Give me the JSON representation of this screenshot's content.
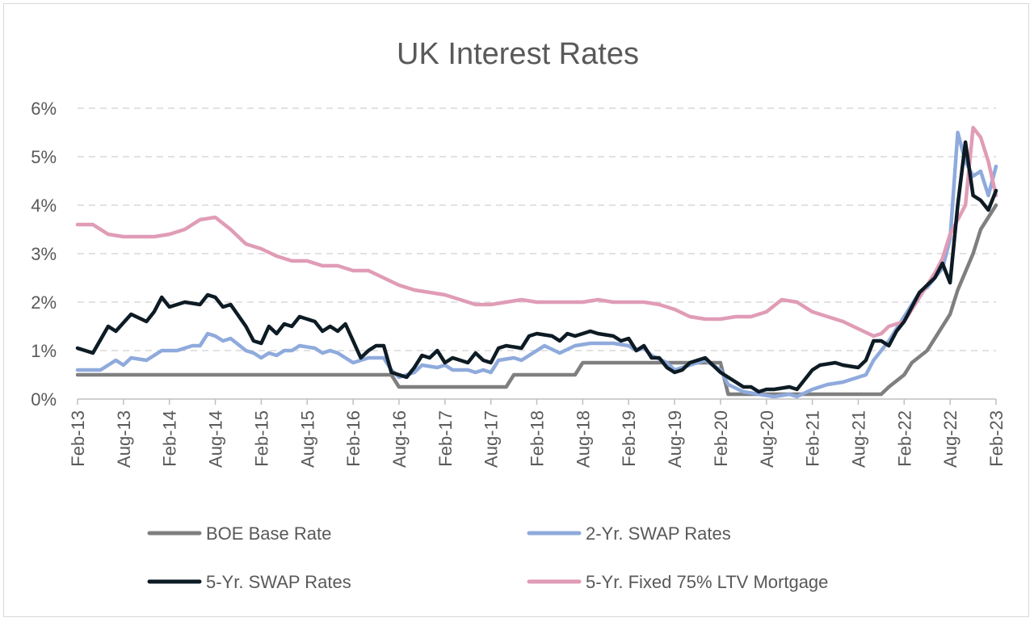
{
  "chart_data": {
    "type": "line",
    "title": "UK Interest Rates",
    "xlabel": "",
    "ylabel": "",
    "x_tick_labels": [
      "Feb-13",
      "Aug-13",
      "Feb-14",
      "Aug-14",
      "Feb-15",
      "Aug-15",
      "Feb-16",
      "Aug-16",
      "Feb-17",
      "Aug-17",
      "Feb-18",
      "Aug-18",
      "Feb-19",
      "Aug-19",
      "Feb-20",
      "Aug-20",
      "Feb-21",
      "Aug-21",
      "Feb-22",
      "Aug-22",
      "Feb-23"
    ],
    "y_tick_labels": [
      "0%",
      "1%",
      "2%",
      "3%",
      "4%",
      "5%",
      "6%"
    ],
    "ylim": [
      0,
      6
    ],
    "xlim": [
      "2013-02",
      "2023-02"
    ],
    "grid": true,
    "legend_position": "bottom",
    "series": [
      {
        "name": "BOE Base Rate",
        "color": "#7f7f7f",
        "points": [
          [
            "2013-02",
            0.5
          ],
          [
            "2016-07",
            0.5
          ],
          [
            "2016-08",
            0.25
          ],
          [
            "2017-10",
            0.25
          ],
          [
            "2017-11",
            0.5
          ],
          [
            "2018-07",
            0.5
          ],
          [
            "2018-08",
            0.75
          ],
          [
            "2020-02",
            0.75
          ],
          [
            "2020-03",
            0.1
          ],
          [
            "2021-11",
            0.1
          ],
          [
            "2021-12",
            0.25
          ],
          [
            "2022-02",
            0.5
          ],
          [
            "2022-03",
            0.75
          ],
          [
            "2022-05",
            1.0
          ],
          [
            "2022-06",
            1.25
          ],
          [
            "2022-08",
            1.75
          ],
          [
            "2022-09",
            2.25
          ],
          [
            "2022-11",
            3.0
          ],
          [
            "2022-12",
            3.5
          ],
          [
            "2023-02",
            4.0
          ]
        ]
      },
      {
        "name": "2-Yr. SWAP Rates",
        "color": "#8faadc",
        "points": [
          [
            "2013-02",
            0.6
          ],
          [
            "2013-05",
            0.6
          ],
          [
            "2013-07",
            0.8
          ],
          [
            "2013-08",
            0.7
          ],
          [
            "2013-09",
            0.85
          ],
          [
            "2013-11",
            0.8
          ],
          [
            "2014-01",
            1.0
          ],
          [
            "2014-03",
            1.0
          ],
          [
            "2014-05",
            1.1
          ],
          [
            "2014-06",
            1.1
          ],
          [
            "2014-07",
            1.35
          ],
          [
            "2014-08",
            1.3
          ],
          [
            "2014-09",
            1.2
          ],
          [
            "2014-10",
            1.25
          ],
          [
            "2014-12",
            1.0
          ],
          [
            "2015-01",
            0.95
          ],
          [
            "2015-02",
            0.85
          ],
          [
            "2015-03",
            0.95
          ],
          [
            "2015-04",
            0.9
          ],
          [
            "2015-05",
            1.0
          ],
          [
            "2015-06",
            1.0
          ],
          [
            "2015-07",
            1.1
          ],
          [
            "2015-09",
            1.05
          ],
          [
            "2015-10",
            0.95
          ],
          [
            "2015-11",
            1.0
          ],
          [
            "2015-12",
            0.95
          ],
          [
            "2016-01",
            0.85
          ],
          [
            "2016-02",
            0.75
          ],
          [
            "2016-04",
            0.85
          ],
          [
            "2016-06",
            0.85
          ],
          [
            "2016-07",
            0.6
          ],
          [
            "2016-08",
            0.45
          ],
          [
            "2016-10",
            0.55
          ],
          [
            "2016-11",
            0.7
          ],
          [
            "2017-01",
            0.65
          ],
          [
            "2017-02",
            0.7
          ],
          [
            "2017-03",
            0.6
          ],
          [
            "2017-05",
            0.6
          ],
          [
            "2017-06",
            0.55
          ],
          [
            "2017-07",
            0.6
          ],
          [
            "2017-08",
            0.55
          ],
          [
            "2017-09",
            0.8
          ],
          [
            "2017-11",
            0.85
          ],
          [
            "2017-12",
            0.8
          ],
          [
            "2018-02",
            1.0
          ],
          [
            "2018-03",
            1.1
          ],
          [
            "2018-05",
            0.95
          ],
          [
            "2018-07",
            1.1
          ],
          [
            "2018-09",
            1.15
          ],
          [
            "2018-11",
            1.15
          ],
          [
            "2018-12",
            1.15
          ],
          [
            "2019-02",
            1.1
          ],
          [
            "2019-03",
            1.0
          ],
          [
            "2019-04",
            1.05
          ],
          [
            "2019-05",
            0.9
          ],
          [
            "2019-07",
            0.75
          ],
          [
            "2019-08",
            0.6
          ],
          [
            "2019-10",
            0.7
          ],
          [
            "2019-12",
            0.8
          ],
          [
            "2020-02",
            0.6
          ],
          [
            "2020-03",
            0.3
          ],
          [
            "2020-05",
            0.15
          ],
          [
            "2020-07",
            0.1
          ],
          [
            "2020-09",
            0.05
          ],
          [
            "2020-11",
            0.1
          ],
          [
            "2020-12",
            0.05
          ],
          [
            "2021-02",
            0.2
          ],
          [
            "2021-04",
            0.3
          ],
          [
            "2021-06",
            0.35
          ],
          [
            "2021-07",
            0.4
          ],
          [
            "2021-09",
            0.5
          ],
          [
            "2021-10",
            0.8
          ],
          [
            "2021-11",
            1.0
          ],
          [
            "2021-12",
            1.2
          ],
          [
            "2022-02",
            1.7
          ],
          [
            "2022-04",
            2.2
          ],
          [
            "2022-05",
            2.3
          ],
          [
            "2022-06",
            2.5
          ],
          [
            "2022-07",
            2.7
          ],
          [
            "2022-08",
            3.3
          ],
          [
            "2022-09",
            5.5
          ],
          [
            "2022-10",
            4.9
          ],
          [
            "2022-11",
            4.6
          ],
          [
            "2022-12",
            4.7
          ],
          [
            "2023-01",
            4.2
          ],
          [
            "2023-02",
            4.8
          ]
        ]
      },
      {
        "name": "5-Yr. SWAP Rates",
        "color": "#0d1b24",
        "points": [
          [
            "2013-02",
            1.05
          ],
          [
            "2013-04",
            0.95
          ],
          [
            "2013-06",
            1.5
          ],
          [
            "2013-07",
            1.4
          ],
          [
            "2013-09",
            1.75
          ],
          [
            "2013-11",
            1.6
          ],
          [
            "2013-12",
            1.8
          ],
          [
            "2014-01",
            2.1
          ],
          [
            "2014-02",
            1.9
          ],
          [
            "2014-04",
            2.0
          ],
          [
            "2014-06",
            1.95
          ],
          [
            "2014-07",
            2.15
          ],
          [
            "2014-08",
            2.1
          ],
          [
            "2014-09",
            1.9
          ],
          [
            "2014-10",
            1.95
          ],
          [
            "2014-12",
            1.5
          ],
          [
            "2015-01",
            1.2
          ],
          [
            "2015-02",
            1.15
          ],
          [
            "2015-03",
            1.5
          ],
          [
            "2015-04",
            1.35
          ],
          [
            "2015-05",
            1.55
          ],
          [
            "2015-06",
            1.5
          ],
          [
            "2015-07",
            1.7
          ],
          [
            "2015-09",
            1.6
          ],
          [
            "2015-10",
            1.4
          ],
          [
            "2015-11",
            1.5
          ],
          [
            "2015-12",
            1.4
          ],
          [
            "2016-01",
            1.55
          ],
          [
            "2016-02",
            1.2
          ],
          [
            "2016-03",
            0.85
          ],
          [
            "2016-04",
            1.0
          ],
          [
            "2016-05",
            1.1
          ],
          [
            "2016-06",
            1.1
          ],
          [
            "2016-07",
            0.55
          ],
          [
            "2016-09",
            0.45
          ],
          [
            "2016-10",
            0.65
          ],
          [
            "2016-11",
            0.9
          ],
          [
            "2016-12",
            0.85
          ],
          [
            "2017-01",
            1.0
          ],
          [
            "2017-02",
            0.75
          ],
          [
            "2017-03",
            0.85
          ],
          [
            "2017-05",
            0.75
          ],
          [
            "2017-06",
            0.95
          ],
          [
            "2017-07",
            0.8
          ],
          [
            "2017-08",
            0.75
          ],
          [
            "2017-09",
            1.05
          ],
          [
            "2017-10",
            1.1
          ],
          [
            "2017-12",
            1.05
          ],
          [
            "2018-01",
            1.3
          ],
          [
            "2018-02",
            1.35
          ],
          [
            "2018-04",
            1.3
          ],
          [
            "2018-05",
            1.2
          ],
          [
            "2018-06",
            1.35
          ],
          [
            "2018-07",
            1.3
          ],
          [
            "2018-09",
            1.4
          ],
          [
            "2018-10",
            1.35
          ],
          [
            "2018-12",
            1.3
          ],
          [
            "2019-01",
            1.2
          ],
          [
            "2019-02",
            1.25
          ],
          [
            "2019-03",
            1.0
          ],
          [
            "2019-04",
            1.1
          ],
          [
            "2019-05",
            0.85
          ],
          [
            "2019-06",
            0.85
          ],
          [
            "2019-07",
            0.65
          ],
          [
            "2019-08",
            0.55
          ],
          [
            "2019-09",
            0.6
          ],
          [
            "2019-10",
            0.75
          ],
          [
            "2019-12",
            0.85
          ],
          [
            "2020-01",
            0.7
          ],
          [
            "2020-02",
            0.55
          ],
          [
            "2020-03",
            0.45
          ],
          [
            "2020-05",
            0.25
          ],
          [
            "2020-06",
            0.25
          ],
          [
            "2020-07",
            0.15
          ],
          [
            "2020-08",
            0.2
          ],
          [
            "2020-09",
            0.2
          ],
          [
            "2020-11",
            0.25
          ],
          [
            "2020-12",
            0.2
          ],
          [
            "2021-02",
            0.6
          ],
          [
            "2021-03",
            0.7
          ],
          [
            "2021-05",
            0.75
          ],
          [
            "2021-06",
            0.7
          ],
          [
            "2021-08",
            0.65
          ],
          [
            "2021-09",
            0.8
          ],
          [
            "2021-10",
            1.2
          ],
          [
            "2021-11",
            1.2
          ],
          [
            "2021-12",
            1.1
          ],
          [
            "2022-01",
            1.4
          ],
          [
            "2022-02",
            1.6
          ],
          [
            "2022-04",
            2.2
          ],
          [
            "2022-06",
            2.5
          ],
          [
            "2022-07",
            2.8
          ],
          [
            "2022-08",
            2.4
          ],
          [
            "2022-09",
            4.0
          ],
          [
            "2022-10",
            5.3
          ],
          [
            "2022-11",
            4.2
          ],
          [
            "2022-12",
            4.1
          ],
          [
            "2023-01",
            3.9
          ],
          [
            "2023-02",
            4.3
          ]
        ]
      },
      {
        "name": "5-Yr. Fixed 75% LTV Mortgage",
        "color": "#e09cb6",
        "points": [
          [
            "2013-02",
            3.6
          ],
          [
            "2013-04",
            3.6
          ],
          [
            "2013-06",
            3.4
          ],
          [
            "2013-08",
            3.35
          ],
          [
            "2013-10",
            3.35
          ],
          [
            "2013-12",
            3.35
          ],
          [
            "2014-02",
            3.4
          ],
          [
            "2014-04",
            3.5
          ],
          [
            "2014-06",
            3.7
          ],
          [
            "2014-08",
            3.75
          ],
          [
            "2014-10",
            3.5
          ],
          [
            "2014-12",
            3.2
          ],
          [
            "2015-02",
            3.1
          ],
          [
            "2015-04",
            2.95
          ],
          [
            "2015-06",
            2.85
          ],
          [
            "2015-08",
            2.85
          ],
          [
            "2015-10",
            2.75
          ],
          [
            "2015-12",
            2.75
          ],
          [
            "2016-02",
            2.65
          ],
          [
            "2016-04",
            2.65
          ],
          [
            "2016-06",
            2.5
          ],
          [
            "2016-08",
            2.35
          ],
          [
            "2016-10",
            2.25
          ],
          [
            "2016-12",
            2.2
          ],
          [
            "2017-02",
            2.15
          ],
          [
            "2017-04",
            2.05
          ],
          [
            "2017-06",
            1.95
          ],
          [
            "2017-08",
            1.95
          ],
          [
            "2017-10",
            2.0
          ],
          [
            "2017-12",
            2.05
          ],
          [
            "2018-02",
            2.0
          ],
          [
            "2018-04",
            2.0
          ],
          [
            "2018-06",
            2.0
          ],
          [
            "2018-08",
            2.0
          ],
          [
            "2018-10",
            2.05
          ],
          [
            "2018-12",
            2.0
          ],
          [
            "2019-02",
            2.0
          ],
          [
            "2019-04",
            2.0
          ],
          [
            "2019-06",
            1.95
          ],
          [
            "2019-08",
            1.85
          ],
          [
            "2019-10",
            1.7
          ],
          [
            "2019-12",
            1.65
          ],
          [
            "2020-02",
            1.65
          ],
          [
            "2020-04",
            1.7
          ],
          [
            "2020-06",
            1.7
          ],
          [
            "2020-08",
            1.8
          ],
          [
            "2020-10",
            2.05
          ],
          [
            "2020-12",
            2.0
          ],
          [
            "2021-02",
            1.8
          ],
          [
            "2021-04",
            1.7
          ],
          [
            "2021-06",
            1.6
          ],
          [
            "2021-08",
            1.45
          ],
          [
            "2021-10",
            1.3
          ],
          [
            "2021-11",
            1.35
          ],
          [
            "2021-12",
            1.5
          ],
          [
            "2022-02",
            1.6
          ],
          [
            "2022-04",
            2.1
          ],
          [
            "2022-06",
            2.6
          ],
          [
            "2022-07",
            2.9
          ],
          [
            "2022-08",
            3.4
          ],
          [
            "2022-09",
            3.7
          ],
          [
            "2022-10",
            4.0
          ],
          [
            "2022-11",
            5.6
          ],
          [
            "2022-12",
            5.4
          ],
          [
            "2023-01",
            4.9
          ],
          [
            "2023-02",
            4.2
          ]
        ]
      }
    ]
  }
}
